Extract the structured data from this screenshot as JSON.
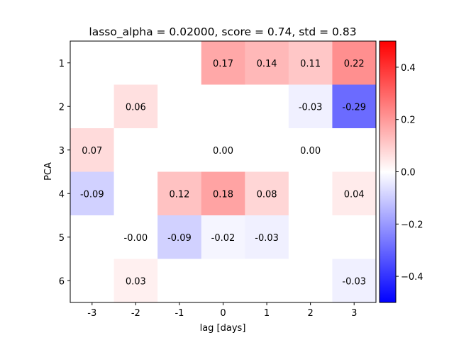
{
  "chart_data": {
    "type": "heatmap",
    "title": "lasso_alpha = 0.02000, score = 0.74, std = 0.83",
    "xlabel": "lag [days]",
    "ylabel": "PCA",
    "x_categories": [
      "-3",
      "-2",
      "-1",
      "0",
      "1",
      "2",
      "3"
    ],
    "y_categories": [
      "1",
      "2",
      "3",
      "4",
      "5",
      "6"
    ],
    "colormap": "bwr",
    "vmin": -0.5,
    "vmax": 0.5,
    "colorbar_ticks": [
      0.4,
      0.2,
      0.0,
      -0.2,
      -0.4
    ],
    "colorbar_tick_labels": [
      "0.4",
      "0.2",
      "0.0",
      "−0.2",
      "−0.4"
    ],
    "values": [
      [
        0,
        0,
        0,
        0.17,
        0.14,
        0.11,
        0.22
      ],
      [
        0,
        0.06,
        0,
        0,
        0,
        -0.03,
        -0.29
      ],
      [
        0.07,
        0,
        0,
        0.0,
        0,
        0.0,
        0
      ],
      [
        -0.09,
        0,
        0.12,
        0.18,
        0.08,
        0,
        0.04
      ],
      [
        0,
        -0.0,
        -0.09,
        -0.02,
        -0.03,
        0,
        0
      ],
      [
        0,
        0.03,
        0,
        0,
        0,
        0,
        -0.03
      ]
    ],
    "cell_labels": [
      [
        "",
        "",
        "",
        "0.17",
        "0.14",
        "0.11",
        "0.22"
      ],
      [
        "",
        "0.06",
        "",
        "",
        "",
        "-0.03",
        "-0.29"
      ],
      [
        "0.07",
        "",
        "",
        "0.00",
        "",
        "0.00",
        ""
      ],
      [
        "-0.09",
        "",
        "0.12",
        "0.18",
        "0.08",
        "",
        "0.04"
      ],
      [
        "",
        "-0.00",
        "-0.09",
        "-0.02",
        "-0.03",
        "",
        ""
      ],
      [
        "",
        "0.03",
        "",
        "",
        "",
        "",
        "-0.03"
      ]
    ]
  }
}
